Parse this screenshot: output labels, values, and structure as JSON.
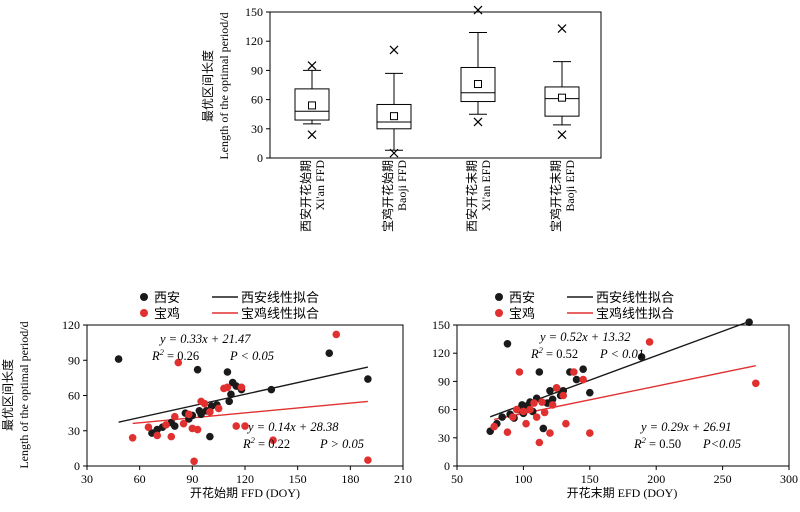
{
  "chart_data": [
    {
      "type": "box",
      "ylabel_cn": "最优区间长度",
      "ylabel_en": "Length of the optimal period/d",
      "ylim": [
        0,
        150
      ],
      "yticks": [
        0,
        30,
        60,
        90,
        120,
        150
      ],
      "categories": [
        {
          "cn": "西安开花始期",
          "en": "Xi'an FFD"
        },
        {
          "cn": "宝鸡开花始期",
          "en": "Baoji FFD"
        },
        {
          "cn": "西安开花末期",
          "en": "Xi'an EFD"
        },
        {
          "cn": "宝鸡开花末期",
          "en": "Baoji EFD"
        }
      ],
      "boxes": [
        {
          "min": 35,
          "q1": 39,
          "median": 48,
          "q3": 71,
          "max": 90,
          "mean": 54,
          "outliers": [
            95,
            24
          ]
        },
        {
          "min": 8,
          "q1": 30,
          "median": 37,
          "q3": 55,
          "max": 87,
          "mean": 43,
          "outliers": [
            111,
            5
          ]
        },
        {
          "min": 45,
          "q1": 58,
          "median": 67,
          "q3": 93,
          "max": 129,
          "mean": 76,
          "outliers": [
            152,
            37
          ]
        },
        {
          "min": 34,
          "q1": 43,
          "median": 61,
          "q3": 73,
          "max": 99,
          "mean": 62,
          "outliers": [
            133,
            24
          ]
        }
      ]
    },
    {
      "type": "scatter",
      "xlabel": "开花始期 FFD (DOY)",
      "ylabel_cn": "最优区间长度",
      "ylabel_en": "Length of the optimal period/d",
      "xlim": [
        30,
        210
      ],
      "ylim": [
        0,
        120
      ],
      "xticks": [
        30,
        60,
        90,
        120,
        150,
        180,
        210
      ],
      "yticks": [
        0,
        30,
        60,
        90,
        120
      ],
      "legend": {
        "s1": "西安",
        "s2": "宝鸡",
        "f1": "西安线性拟合",
        "f2": "宝鸡线性拟合"
      },
      "series": [
        {
          "name": "西安",
          "color": "#1a1a1a",
          "points": [
            [
              48,
              91
            ],
            [
              67,
              28
            ],
            [
              70,
              31
            ],
            [
              73,
              33
            ],
            [
              78,
              37
            ],
            [
              80,
              34
            ],
            [
              86,
              45
            ],
            [
              88,
              40
            ],
            [
              90,
              43
            ],
            [
              93,
              82
            ],
            [
              94,
              47
            ],
            [
              95,
              44
            ],
            [
              98,
              47
            ],
            [
              100,
              25
            ],
            [
              101,
              51
            ],
            [
              104,
              52
            ],
            [
              110,
              80
            ],
            [
              111,
              55
            ],
            [
              112,
              61
            ],
            [
              113,
              71
            ],
            [
              115,
              68
            ],
            [
              118,
              65
            ],
            [
              135,
              65
            ],
            [
              168,
              96
            ],
            [
              190,
              74
            ]
          ]
        },
        {
          "name": "宝鸡",
          "color": "#e03030",
          "points": [
            [
              56,
              24
            ],
            [
              65,
              33
            ],
            [
              70,
              26
            ],
            [
              75,
              35
            ],
            [
              78,
              25
            ],
            [
              80,
              42
            ],
            [
              82,
              88
            ],
            [
              85,
              36
            ],
            [
              88,
              44
            ],
            [
              90,
              32
            ],
            [
              91,
              4
            ],
            [
              93,
              31
            ],
            [
              95,
              55
            ],
            [
              97,
              53
            ],
            [
              100,
              46
            ],
            [
              105,
              49
            ],
            [
              108,
              66
            ],
            [
              110,
              67
            ],
            [
              115,
              34
            ],
            [
              118,
              67
            ],
            [
              120,
              34
            ],
            [
              136,
              22
            ],
            [
              172,
              112
            ],
            [
              190,
              5
            ]
          ]
        }
      ],
      "fits": [
        {
          "name": "西安线性拟合",
          "color": "#1a1a1a",
          "slope": 0.33,
          "intercept": 21.47,
          "x": [
            48,
            190
          ],
          "eq": "y = 0.33x + 21.47",
          "r2": "R2 = 0.26",
          "p": "P < 0.05"
        },
        {
          "name": "宝鸡线性拟合",
          "color": "#e03030",
          "slope": 0.14,
          "intercept": 28.38,
          "x": [
            56,
            190
          ],
          "eq": "y = 0.14x + 28.38",
          "r2": "R2 = 0.22",
          "p": "P > 0.05"
        }
      ]
    },
    {
      "type": "scatter",
      "xlabel": "开花末期 EFD (DOY)",
      "xlim": [
        50,
        300
      ],
      "ylim": [
        0,
        150
      ],
      "xticks": [
        50,
        100,
        150,
        200,
        250,
        300
      ],
      "yticks": [
        0,
        30,
        60,
        90,
        120,
        150
      ],
      "legend": {
        "s1": "西安",
        "s2": "宝鸡",
        "f1": "西安线性拟合",
        "f2": "宝鸡线性拟合"
      },
      "series": [
        {
          "name": "西安",
          "color": "#1a1a1a",
          "points": [
            [
              75,
              37
            ],
            [
              80,
              45
            ],
            [
              84,
              52
            ],
            [
              88,
              130
            ],
            [
              90,
              55
            ],
            [
              93,
              51
            ],
            [
              96,
              60
            ],
            [
              99,
              65
            ],
            [
              100,
              56
            ],
            [
              103,
              64
            ],
            [
              105,
              68
            ],
            [
              107,
              58
            ],
            [
              110,
              72
            ],
            [
              112,
              100
            ],
            [
              115,
              40
            ],
            [
              118,
              67
            ],
            [
              120,
              80
            ],
            [
              122,
              71
            ],
            [
              125,
              83
            ],
            [
              128,
              75
            ],
            [
              130,
              80
            ],
            [
              135,
              100
            ],
            [
              140,
              92
            ],
            [
              145,
              103
            ],
            [
              150,
              78
            ],
            [
              189,
              116
            ],
            [
              270,
              153
            ]
          ]
        },
        {
          "name": "宝鸡",
          "color": "#e03030",
          "points": [
            [
              78,
              42
            ],
            [
              88,
              36
            ],
            [
              92,
              52
            ],
            [
              95,
              60
            ],
            [
              97,
              100
            ],
            [
              100,
              58
            ],
            [
              102,
              45
            ],
            [
              105,
              60
            ],
            [
              108,
              67
            ],
            [
              110,
              52
            ],
            [
              112,
              25
            ],
            [
              114,
              68
            ],
            [
              116,
              57
            ],
            [
              120,
              35
            ],
            [
              122,
              65
            ],
            [
              125,
              83
            ],
            [
              130,
              75
            ],
            [
              132,
              45
            ],
            [
              138,
              100
            ],
            [
              145,
              92
            ],
            [
              150,
              35
            ],
            [
              195,
              132
            ],
            [
              275,
              88
            ]
          ]
        }
      ],
      "fits": [
        {
          "name": "西安线性拟合",
          "color": "#1a1a1a",
          "slope": 0.52,
          "intercept": 13.32,
          "x": [
            75,
            270
          ],
          "eq": "y = 0.52x + 13.32",
          "r2": "R2 = 0.52",
          "p": "P < 0.01"
        },
        {
          "name": "宝鸡线性拟合",
          "color": "#e03030",
          "slope": 0.29,
          "intercept": 26.91,
          "x": [
            78,
            275
          ],
          "eq": "y = 0.29x + 26.91",
          "r2": "R2 = 0.50",
          "p": "P<0.05"
        }
      ]
    }
  ]
}
